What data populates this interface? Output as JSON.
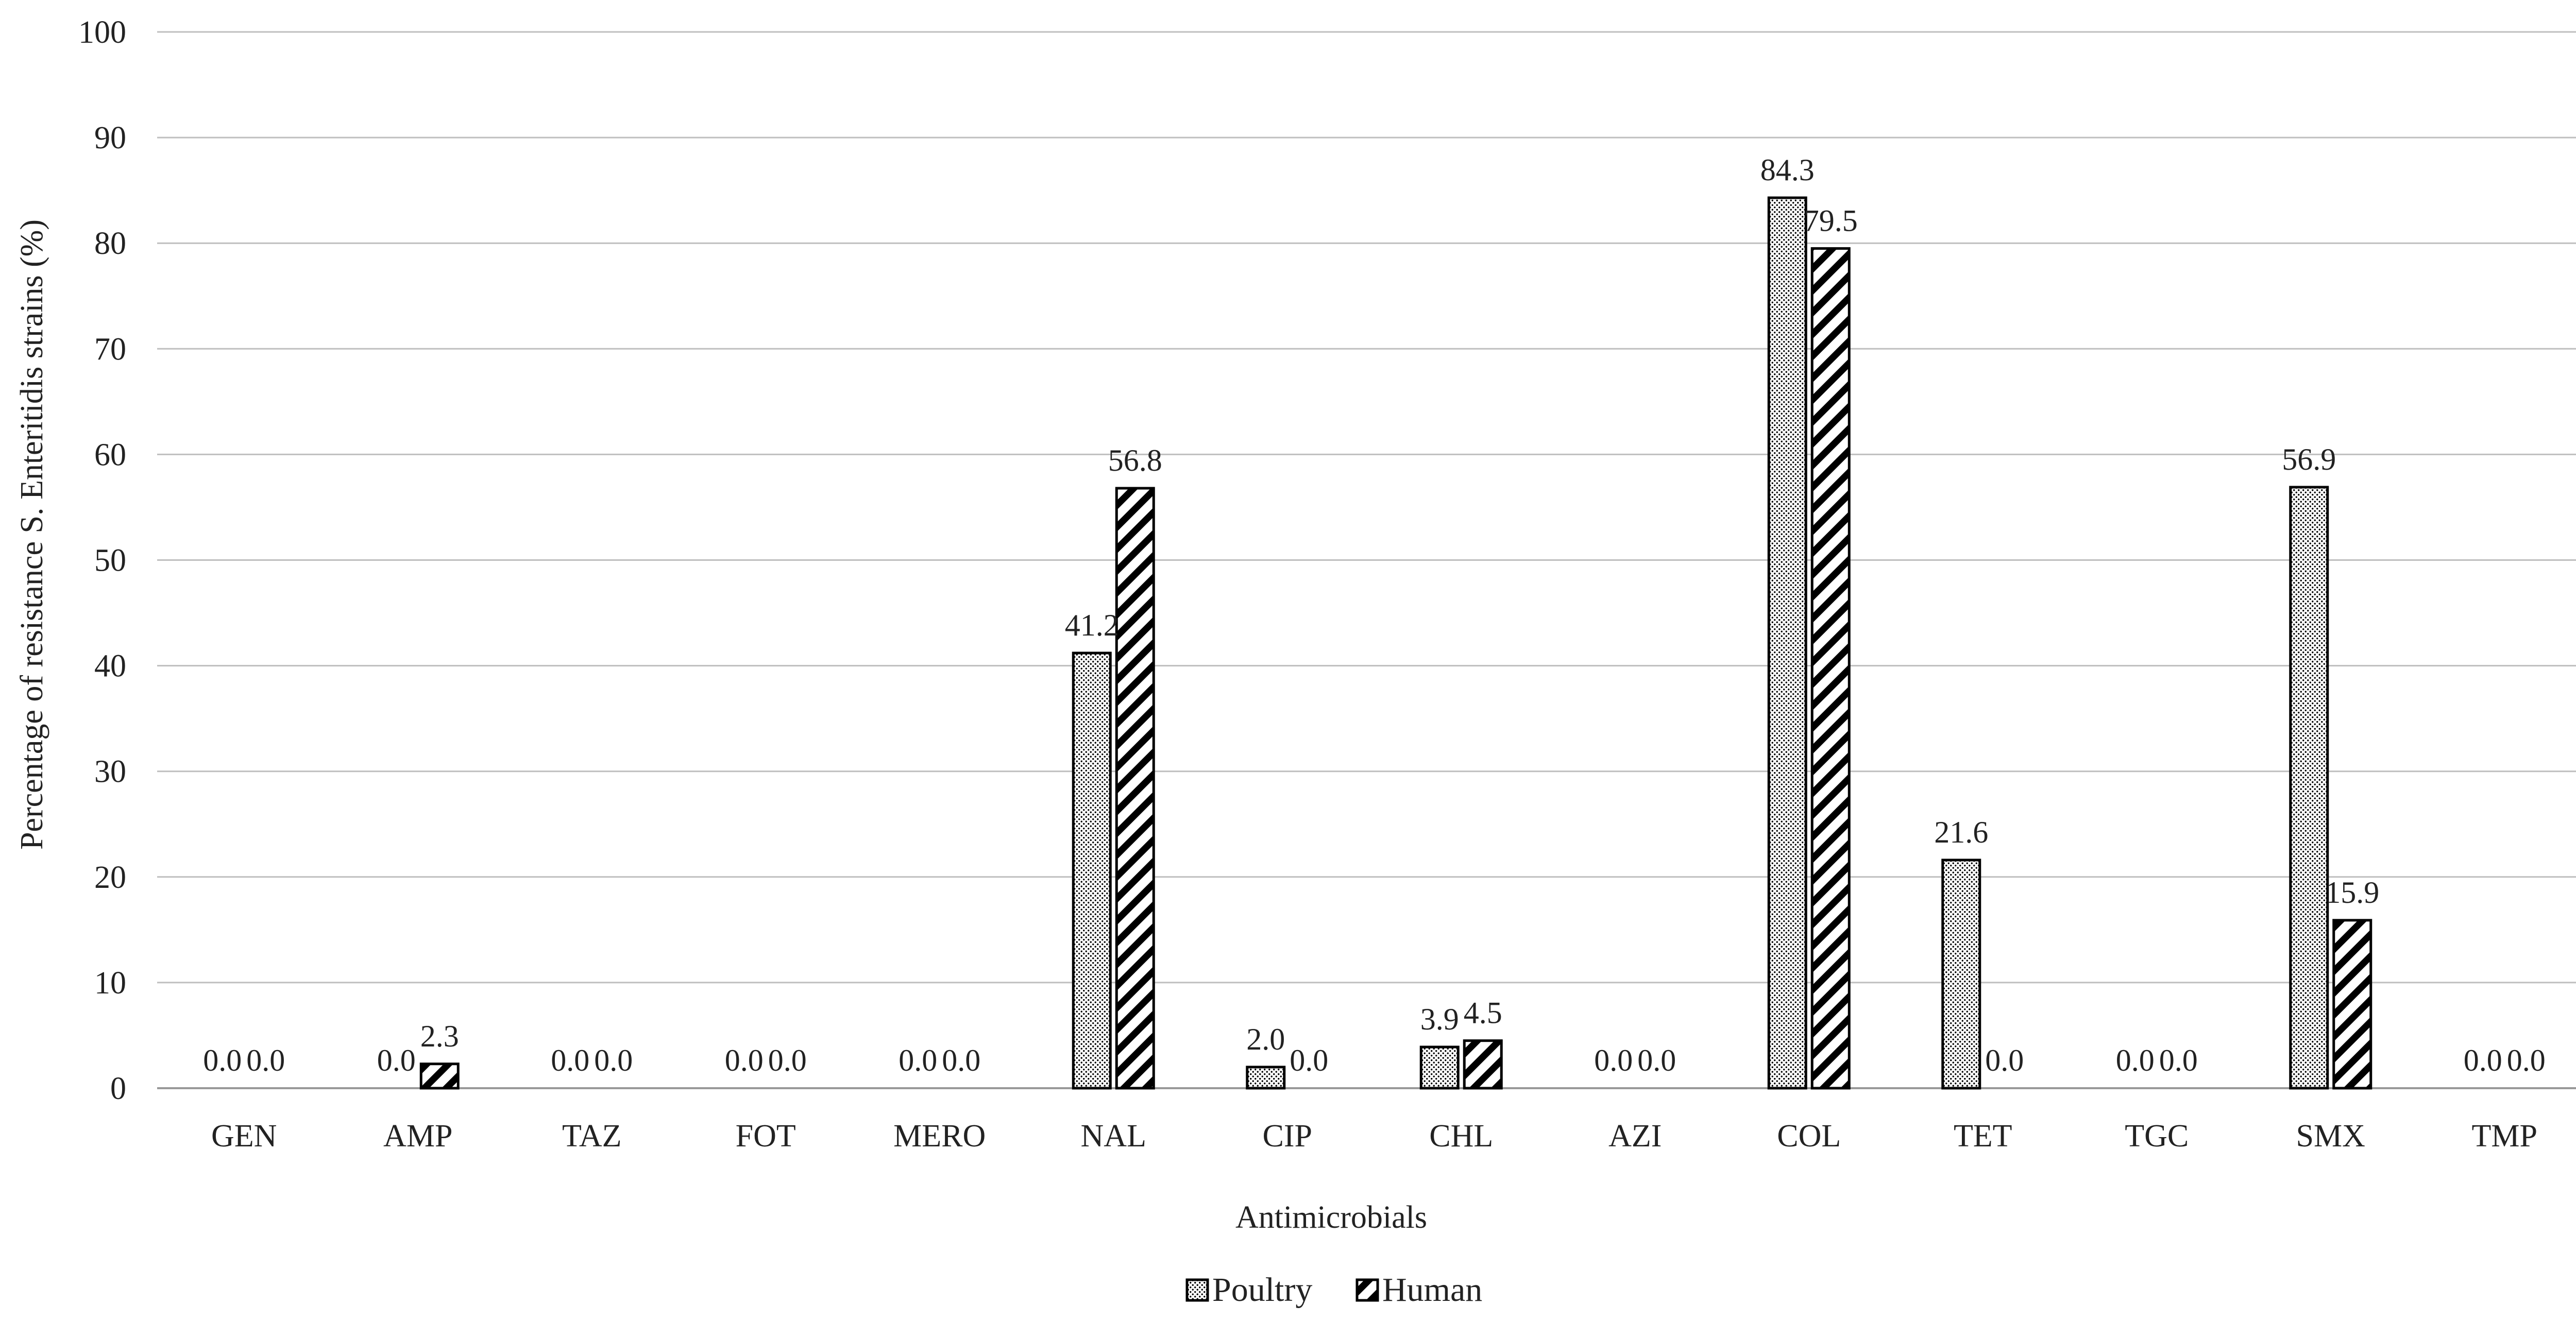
{
  "chart_data": {
    "type": "bar",
    "title": "",
    "xlabel": "Antimicrobials",
    "ylabel": "Percentage of resistance S. Enteritidis strains (%)",
    "ylim": [
      0,
      100
    ],
    "yticks": [
      0,
      10,
      20,
      30,
      40,
      50,
      60,
      70,
      80,
      90,
      100
    ],
    "grid": true,
    "legend_position": "bottom-center",
    "categories": [
      "GEN",
      "AMP",
      "TAZ",
      "FOT",
      "MERO",
      "NAL",
      "CIP",
      "CHL",
      "AZI",
      "COL",
      "TET",
      "TGC",
      "SMX",
      "TMP"
    ],
    "series": [
      {
        "name": "Poultry",
        "pattern": "dotted",
        "values": [
          0.0,
          0.0,
          0.0,
          0.0,
          0.0,
          41.2,
          2.0,
          3.9,
          0.0,
          84.3,
          21.6,
          0.0,
          56.9,
          0.0
        ],
        "labels": [
          "0.0",
          "0.0",
          "0.0",
          "0.0",
          "0.0",
          "41.2",
          "2.0",
          "3.9",
          "0.0",
          "84.3",
          "21.6",
          "0.0",
          "56.9",
          "0.0"
        ]
      },
      {
        "name": "Human",
        "pattern": "diagonal-hatch",
        "values": [
          0.0,
          2.3,
          0.0,
          0.0,
          0.0,
          56.8,
          0.0,
          4.5,
          0.0,
          79.5,
          0.0,
          0.0,
          15.9,
          0.0
        ],
        "labels": [
          "0.0",
          "2.3",
          "0.0",
          "0.0",
          "0.0",
          "56.8",
          "0.0",
          "4.5",
          "0.0",
          "79.5",
          "0.0",
          "0.0",
          "15.9",
          "0.0"
        ]
      }
    ],
    "colors": {
      "bar_stroke": "#000000",
      "gridline": "#bfbfbf",
      "text": "#222222",
      "background": "#ffffff"
    }
  }
}
